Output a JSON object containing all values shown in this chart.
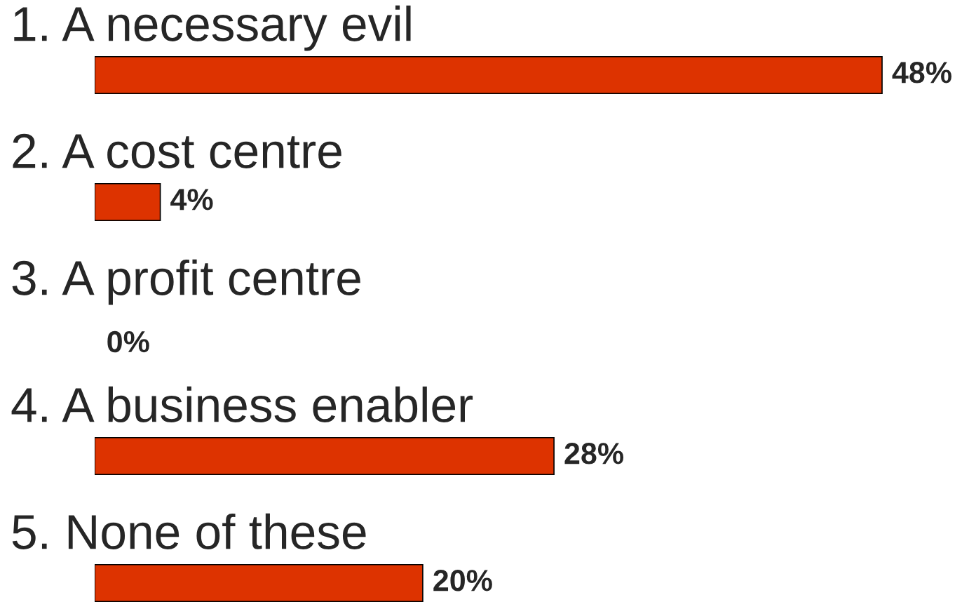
{
  "chart_data": {
    "type": "bar",
    "orientation": "horizontal",
    "categories": [
      "1. A necessary evil",
      "2. A cost centre",
      "3. A profit centre",
      "4. A business enabler",
      "5. None of these"
    ],
    "values": [
      48,
      4,
      0,
      28,
      20
    ],
    "value_labels": [
      "48%",
      "4%",
      "0%",
      "28%",
      "20%"
    ],
    "color": "#dd3300",
    "legend": false
  }
}
